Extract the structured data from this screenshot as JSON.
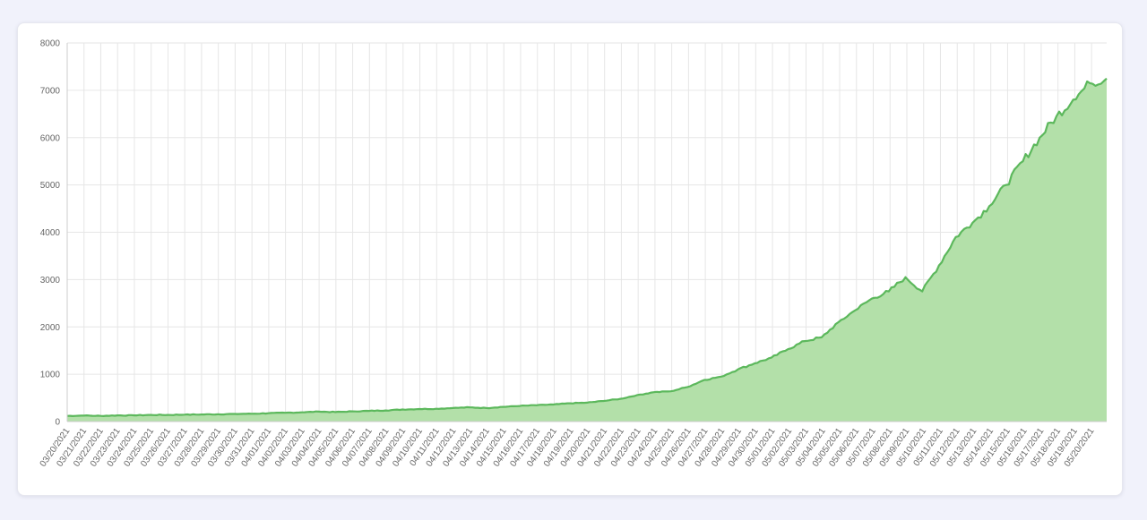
{
  "colors": {
    "page_background": "#f1f2fb",
    "card_background": "#ffffff",
    "grid": "#e6e6e6",
    "area_fill": "#b3e0a9",
    "line": "#5cb85c",
    "tick_text": "#666666"
  },
  "chart_data": {
    "type": "area",
    "title": "",
    "xlabel": "",
    "ylabel": "",
    "ylim": [
      0,
      8000
    ],
    "yticks": [
      0,
      1000,
      2000,
      3000,
      4000,
      5000,
      6000,
      7000,
      8000
    ],
    "grid": true,
    "legend": "none",
    "x_tick_labels": [
      "03/20/2021",
      "03/21/2021",
      "03/22/2021",
      "03/23/2021",
      "03/24/2021",
      "03/25/2021",
      "03/26/2021",
      "03/27/2021",
      "03/28/2021",
      "03/29/2021",
      "03/30/2021",
      "03/31/2021",
      "04/01/2021",
      "04/02/2021",
      "04/03/2021",
      "04/04/2021",
      "04/05/2021",
      "04/06/2021",
      "04/07/2021",
      "04/08/2021",
      "04/09/2021",
      "04/10/2021",
      "04/11/2021",
      "04/12/2021",
      "04/13/2021",
      "04/14/2021",
      "04/15/2021",
      "04/16/2021",
      "04/17/2021",
      "04/18/2021",
      "04/19/2021",
      "04/20/2021",
      "04/21/2021",
      "04/22/2021",
      "04/23/2021",
      "04/24/2021",
      "04/25/2021",
      "04/26/2021",
      "04/27/2021",
      "04/28/2021",
      "04/29/2021",
      "04/30/2021",
      "05/01/2021",
      "05/02/2021",
      "05/03/2021",
      "05/04/2021",
      "05/05/2021",
      "05/06/2021",
      "05/07/2021",
      "05/08/2021",
      "05/09/2021",
      "05/10/2021",
      "05/11/2021",
      "05/12/2021",
      "05/13/2021",
      "05/14/2021",
      "05/15/2021",
      "05/16/2021",
      "05/17/2021",
      "05/18/2021",
      "05/19/2021",
      "05/20/2021"
    ],
    "series": [
      {
        "color": "#5cb85c",
        "fill": "#b3e0a9",
        "points": [
          [
            "03/20/2021",
            120
          ],
          [
            "03/21/2021",
            125
          ],
          [
            "03/22/2021",
            120
          ],
          [
            "03/23/2021",
            130
          ],
          [
            "03/24/2021",
            130
          ],
          [
            "03/25/2021",
            140
          ],
          [
            "03/26/2021",
            140
          ],
          [
            "03/27/2021",
            145
          ],
          [
            "03/28/2021",
            150
          ],
          [
            "03/29/2021",
            155
          ],
          [
            "03/30/2021",
            160
          ],
          [
            "03/31/2021",
            165
          ],
          [
            "04/01/2021",
            175
          ],
          [
            "04/02/2021",
            185
          ],
          [
            "04/03/2021",
            195
          ],
          [
            "04/04/2021",
            210
          ],
          [
            "04/05/2021",
            200
          ],
          [
            "04/06/2021",
            215
          ],
          [
            "04/07/2021",
            225
          ],
          [
            "04/08/2021",
            235
          ],
          [
            "04/09/2021",
            255
          ],
          [
            "04/10/2021",
            265
          ],
          [
            "04/11/2021",
            270
          ],
          [
            "04/12/2021",
            285
          ],
          [
            "04/13/2021",
            300
          ],
          [
            "04/14/2021",
            285
          ],
          [
            "04/15/2021",
            310
          ],
          [
            "04/16/2021",
            330
          ],
          [
            "04/17/2021",
            345
          ],
          [
            "04/18/2021",
            360
          ],
          [
            "04/19/2021",
            385
          ],
          [
            "04/20/2021",
            400
          ],
          [
            "04/21/2021",
            435
          ],
          [
            "04/22/2021",
            480
          ],
          [
            "04/23/2021",
            560
          ],
          [
            "04/24/2021",
            620
          ],
          [
            "04/25/2021",
            640
          ],
          [
            "04/26/2021",
            730
          ],
          [
            "04/27/2021",
            880
          ],
          [
            "04/28/2021",
            950
          ],
          [
            "04/29/2021",
            1100
          ],
          [
            "04/30/2021",
            1230
          ],
          [
            "05/01/2021",
            1350
          ],
          [
            "05/02/2021",
            1530
          ],
          [
            "05/03/2021",
            1700
          ],
          [
            "05/04/2021",
            1780
          ],
          [
            "05/05/2021",
            2100
          ],
          [
            "05/06/2021",
            2350
          ],
          [
            "05/07/2021",
            2600
          ],
          [
            "05/08/2021",
            2750
          ],
          [
            "05/09/2021",
            3050
          ],
          [
            "05/10/2021",
            2750
          ],
          [
            "05/11/2021",
            3300
          ],
          [
            "05/12/2021",
            3900
          ],
          [
            "05/13/2021",
            4200
          ],
          [
            "05/14/2021",
            4550
          ],
          [
            "05/15/2021",
            5000
          ],
          [
            "05/16/2021",
            5500
          ],
          [
            "05/17/2021",
            6000
          ],
          [
            "05/18/2021",
            6450
          ],
          [
            "05/19/2021",
            6800
          ],
          [
            "05/20/2021",
            7150
          ],
          [
            "05/20/2021+",
            7250
          ]
        ]
      }
    ]
  }
}
